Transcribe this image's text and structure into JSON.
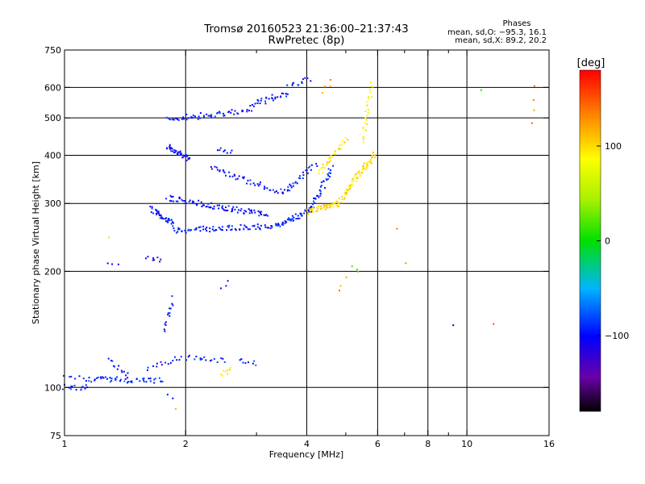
{
  "chart_data": {
    "type": "scatter",
    "title": "Tromsø 20160523 21:36:00–21:37:43",
    "subtitle": "RwPretec (8p)",
    "xlabel": "Frequency [MHz]",
    "ylabel": "Stationary phase Virtual Height [km]",
    "x_scale": "log",
    "y_scale": "log",
    "xlim": [
      1,
      16
    ],
    "ylim": [
      75,
      750
    ],
    "x_ticks": [
      1,
      2,
      4,
      6,
      8,
      10,
      16
    ],
    "x_tick_labels": [
      "1",
      "2",
      "4",
      "6",
      "8",
      "10",
      "16"
    ],
    "x_grid": [
      2,
      4,
      6,
      8,
      10
    ],
    "x_minor_ticks": [
      3,
      5,
      7,
      9
    ],
    "y_ticks": [
      75,
      100,
      200,
      300,
      400,
      500,
      600,
      750
    ],
    "y_tick_labels": [
      "75",
      "100",
      "200",
      "300",
      "400",
      "500",
      "600",
      "750"
    ],
    "y_grid": [
      100,
      200,
      300,
      400,
      500,
      600
    ],
    "grid": true,
    "stats": {
      "heading": "Phases",
      "line_o": "mean, sd,O: −95.3, 16.1",
      "line_x": "mean, sd,X: 89.2, 20.2"
    },
    "colorbar": {
      "label": "[deg]",
      "range": [
        -180,
        180
      ],
      "ticks": [
        -100,
        0,
        100
      ],
      "tick_labels": [
        "−100",
        "0",
        "100"
      ]
    },
    "traces": [
      {
        "x_range": [
          1.0,
          1.1
        ],
        "h_range": [
          100,
          100
        ],
        "phase": -95,
        "points": 10
      },
      {
        "x_range": [
          1.1,
          1.2
        ],
        "h_range": [
          100,
          105
        ],
        "phase": -95,
        "points": 8
      },
      {
        "x_range": [
          1.2,
          1.75
        ],
        "h_range": [
          105,
          104
        ],
        "phase": -90,
        "points": 45
      },
      {
        "x_range": [
          1.0,
          1.15
        ],
        "h_range": [
          108,
          105
        ],
        "phase": -90,
        "points": 8
      },
      {
        "x_range": [
          1.28,
          1.45
        ],
        "h_range": [
          117,
          108
        ],
        "phase": -100,
        "points": 12
      },
      {
        "x_range": [
          1.6,
          1.9
        ],
        "h_range": [
          112,
          118
        ],
        "phase": -100,
        "points": 12
      },
      {
        "x_range": [
          1.9,
          2.2
        ],
        "h_range": [
          118,
          120
        ],
        "phase": -95,
        "points": 10
      },
      {
        "x_range": [
          2.2,
          2.5
        ],
        "h_range": [
          120,
          117
        ],
        "phase": -95,
        "points": 10
      },
      {
        "x_range": [
          2.7,
          3.0
        ],
        "h_range": [
          117,
          115
        ],
        "phase": -90,
        "points": 8
      },
      {
        "x_range": [
          2.45,
          2.6
        ],
        "h_range": [
          108,
          112
        ],
        "phase": 100,
        "points": 8
      },
      {
        "x_range": [
          1.78,
          1.85
        ],
        "h_range": [
          140,
          170
        ],
        "phase": -100,
        "points": 14
      },
      {
        "x_range": [
          2.45,
          2.55
        ],
        "h_range": [
          182,
          188
        ],
        "phase": -110,
        "points": 3
      },
      {
        "x_range": [
          1.6,
          1.75
        ],
        "h_range": [
          215,
          214
        ],
        "phase": -100,
        "points": 8
      },
      {
        "x_range": [
          1.65,
          1.85
        ],
        "h_range": [
          290,
          265
        ],
        "phase": -100,
        "points": 40
      },
      {
        "x_range": [
          1.85,
          3.4
        ],
        "h_range": [
          255,
          262
        ],
        "phase": -95,
        "points": 80
      },
      {
        "x_range": [
          3.4,
          4.1
        ],
        "h_range": [
          262,
          290
        ],
        "phase": -90,
        "points": 45
      },
      {
        "x_range": [
          4.1,
          4.6
        ],
        "h_range": [
          290,
          370
        ],
        "phase": -95,
        "points": 35
      },
      {
        "x_range": [
          1.8,
          3.2
        ],
        "h_range": [
          310,
          280
        ],
        "phase": -100,
        "points": 90
      },
      {
        "x_range": [
          2.3,
          3.5
        ],
        "h_range": [
          370,
          320
        ],
        "phase": -100,
        "points": 45
      },
      {
        "x_range": [
          3.5,
          4.2
        ],
        "h_range": [
          320,
          380
        ],
        "phase": -95,
        "points": 30
      },
      {
        "x_range": [
          1.8,
          2.05
        ],
        "h_range": [
          420,
          390
        ],
        "phase": -100,
        "points": 40
      },
      {
        "x_range": [
          2.4,
          2.6
        ],
        "h_range": [
          415,
          405
        ],
        "phase": -100,
        "points": 8
      },
      {
        "x_range": [
          1.8,
          2.2
        ],
        "h_range": [
          500,
          505
        ],
        "phase": -100,
        "points": 25
      },
      {
        "x_range": [
          2.2,
          2.9
        ],
        "h_range": [
          510,
          520
        ],
        "phase": -95,
        "points": 30
      },
      {
        "x_range": [
          2.9,
          3.6
        ],
        "h_range": [
          540,
          580
        ],
        "phase": -100,
        "points": 30
      },
      {
        "x_range": [
          3.6,
          4.1
        ],
        "h_range": [
          600,
          630
        ],
        "phase": -100,
        "points": 12
      },
      {
        "x_range": [
          4.0,
          4.8
        ],
        "h_range": [
          285,
          300
        ],
        "phase": 100,
        "points": 45
      },
      {
        "x_range": [
          4.8,
          5.3
        ],
        "h_range": [
          300,
          350
        ],
        "phase": 95,
        "points": 30
      },
      {
        "x_range": [
          5.3,
          5.9
        ],
        "h_range": [
          350,
          400
        ],
        "phase": 100,
        "points": 40
      },
      {
        "x_range": [
          4.3,
          5.0
        ],
        "h_range": [
          360,
          440
        ],
        "phase": 95,
        "points": 30
      },
      {
        "x_range": [
          5.5,
          5.8
        ],
        "h_range": [
          430,
          620
        ],
        "phase": 90,
        "points": 25
      },
      {
        "x_range": [
          4.4,
          4.6
        ],
        "h_range": [
          590,
          620
        ],
        "phase": 130,
        "points": 4
      },
      {
        "x_range": [
          4.8,
          5.0
        ],
        "h_range": [
          180,
          190
        ],
        "phase": 130,
        "points": 3
      },
      {
        "x_range": [
          5.2,
          5.4
        ],
        "h_range": [
          205,
          200
        ],
        "phase": 20,
        "points": 3
      },
      {
        "x_range": [
          6.6,
          6.8
        ],
        "h_range": [
          258,
          258
        ],
        "phase": 150,
        "points": 1
      },
      {
        "x_range": [
          7.0,
          7.1
        ],
        "h_range": [
          210,
          210
        ],
        "phase": 20,
        "points": 1
      },
      {
        "x_range": [
          9.2,
          9.3
        ],
        "h_range": [
          145,
          145
        ],
        "phase": -110,
        "points": 1
      },
      {
        "x_range": [
          10.8,
          10.9
        ],
        "h_range": [
          590,
          590
        ],
        "phase": 20,
        "points": 1
      },
      {
        "x_range": [
          11.6,
          11.7
        ],
        "h_range": [
          146,
          146
        ],
        "phase": 160,
        "points": 1
      },
      {
        "x_range": [
          14.5,
          14.6
        ],
        "h_range": [
          480,
          610
        ],
        "phase": 140,
        "points": 4
      },
      {
        "x_range": [
          1.28,
          1.3
        ],
        "h_range": [
          245,
          245
        ],
        "phase": 70,
        "points": 1
      },
      {
        "x_range": [
          1.28,
          1.36
        ],
        "h_range": [
          210,
          207
        ],
        "phase": -110,
        "points": 3
      },
      {
        "x_range": [
          1.88,
          1.9
        ],
        "h_range": [
          88,
          88
        ],
        "phase": 110,
        "points": 1
      },
      {
        "x_range": [
          1.8,
          1.85
        ],
        "h_range": [
          97,
          95
        ],
        "phase": -100,
        "points": 2
      }
    ]
  }
}
